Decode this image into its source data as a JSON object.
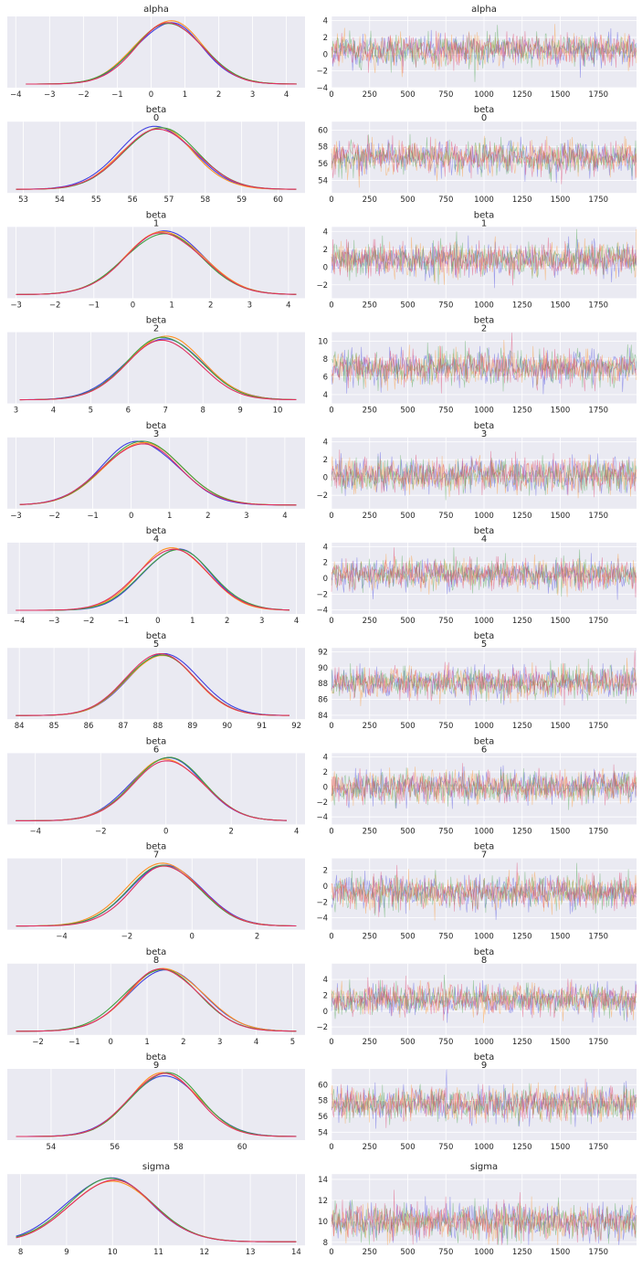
{
  "chart_data": {
    "type": "line",
    "kind": "trace-plot",
    "chain_colors": [
      "#4040e0",
      "#ff9020",
      "#40a040",
      "#e03060"
    ],
    "trace_x_ticks": [
      0,
      250,
      500,
      750,
      1000,
      1250,
      1500,
      1750
    ],
    "draws": 2000,
    "panels": [
      {
        "var": "alpha",
        "index": "",
        "mean": 0.5,
        "sd": 1.0,
        "kde_range": [
          -3.7,
          4.3
        ],
        "kde_ticks": [
          -4,
          -3,
          -2,
          -1,
          0,
          1,
          2,
          3,
          4
        ],
        "trace_range": [
          -4,
          4.5
        ],
        "trace_ticks": [
          -4,
          -2,
          0,
          2,
          4
        ]
      },
      {
        "var": "beta",
        "index": "0",
        "mean": 56.7,
        "sd": 1.0,
        "kde_range": [
          52.8,
          60.5
        ],
        "kde_ticks": [
          53,
          54,
          55,
          56,
          57,
          58,
          59,
          60
        ],
        "trace_range": [
          52.5,
          61
        ],
        "trace_ticks": [
          54,
          56,
          58,
          60
        ]
      },
      {
        "var": "beta",
        "index": "1",
        "mean": 0.85,
        "sd": 1.0,
        "kde_range": [
          -3.0,
          4.2
        ],
        "kde_ticks": [
          -3,
          -2,
          -1,
          0,
          1,
          2,
          3,
          4
        ],
        "trace_range": [
          -3.5,
          4.5
        ],
        "trace_ticks": [
          -2,
          0,
          2,
          4
        ]
      },
      {
        "var": "beta",
        "index": "2",
        "mean": 7.0,
        "sd": 1.0,
        "kde_range": [
          3.1,
          10.5
        ],
        "kde_ticks": [
          3,
          4,
          5,
          6,
          7,
          8,
          9,
          10
        ],
        "trace_range": [
          3,
          11
        ],
        "trace_ticks": [
          4,
          6,
          8,
          10
        ]
      },
      {
        "var": "beta",
        "index": "3",
        "mean": 0.25,
        "sd": 1.0,
        "kde_range": [
          -2.9,
          4.3
        ],
        "kde_ticks": [
          -3,
          -2,
          -1,
          0,
          1,
          2,
          3,
          4
        ],
        "trace_range": [
          -3.5,
          4.5
        ],
        "trace_ticks": [
          -2,
          0,
          2,
          4
        ]
      },
      {
        "var": "beta",
        "index": "4",
        "mean": 0.5,
        "sd": 1.0,
        "kde_range": [
          -4.1,
          3.8
        ],
        "kde_ticks": [
          -4,
          -3,
          -2,
          -1,
          0,
          1,
          2,
          3,
          4
        ],
        "trace_range": [
          -4.5,
          4.5
        ],
        "trace_ticks": [
          -4,
          -2,
          0,
          2,
          4
        ]
      },
      {
        "var": "beta",
        "index": "5",
        "mean": 88.1,
        "sd": 1.0,
        "kde_range": [
          83.9,
          91.8
        ],
        "kde_ticks": [
          84,
          85,
          86,
          87,
          88,
          89,
          90,
          91,
          92
        ],
        "trace_range": [
          83.5,
          92.5
        ],
        "trace_ticks": [
          84,
          86,
          88,
          90,
          92
        ]
      },
      {
        "var": "beta",
        "index": "6",
        "mean": 0.0,
        "sd": 1.1,
        "kde_range": [
          -4.6,
          3.7
        ],
        "kde_ticks": [
          -4,
          -2,
          0,
          2,
          4
        ],
        "trace_range": [
          -5,
          4.5
        ],
        "trace_ticks": [
          -4,
          -2,
          0,
          2,
          4
        ]
      },
      {
        "var": "beta",
        "index": "7",
        "mean": -0.8,
        "sd": 1.1,
        "kde_range": [
          -5.4,
          3.2
        ],
        "kde_ticks": [
          -4,
          -2,
          0,
          2
        ],
        "trace_range": [
          -5.5,
          3.5
        ],
        "trace_ticks": [
          -4,
          -2,
          0,
          2
        ]
      },
      {
        "var": "beta",
        "index": "8",
        "mean": 1.45,
        "sd": 1.0,
        "kde_range": [
          -2.6,
          5.1
        ],
        "kde_ticks": [
          -2,
          -1,
          0,
          1,
          2,
          3,
          4,
          5
        ],
        "trace_range": [
          -3,
          6
        ],
        "trace_ticks": [
          -2,
          0,
          2,
          4
        ]
      },
      {
        "var": "beta",
        "index": "9",
        "mean": 57.6,
        "sd": 1.1,
        "kde_range": [
          52.9,
          61.7
        ],
        "kde_ticks": [
          54,
          56,
          58,
          60
        ],
        "trace_range": [
          53,
          62
        ],
        "trace_ticks": [
          54,
          56,
          58,
          60
        ]
      },
      {
        "var": "sigma",
        "index": "",
        "mean": 9.95,
        "sd": 0.9,
        "kde_range": [
          7.9,
          14.0
        ],
        "kde_ticks": [
          8,
          9,
          10,
          11,
          12,
          13,
          14
        ],
        "trace_range": [
          7.7,
          14.5
        ],
        "trace_ticks": [
          8,
          10,
          12,
          14
        ]
      }
    ]
  }
}
